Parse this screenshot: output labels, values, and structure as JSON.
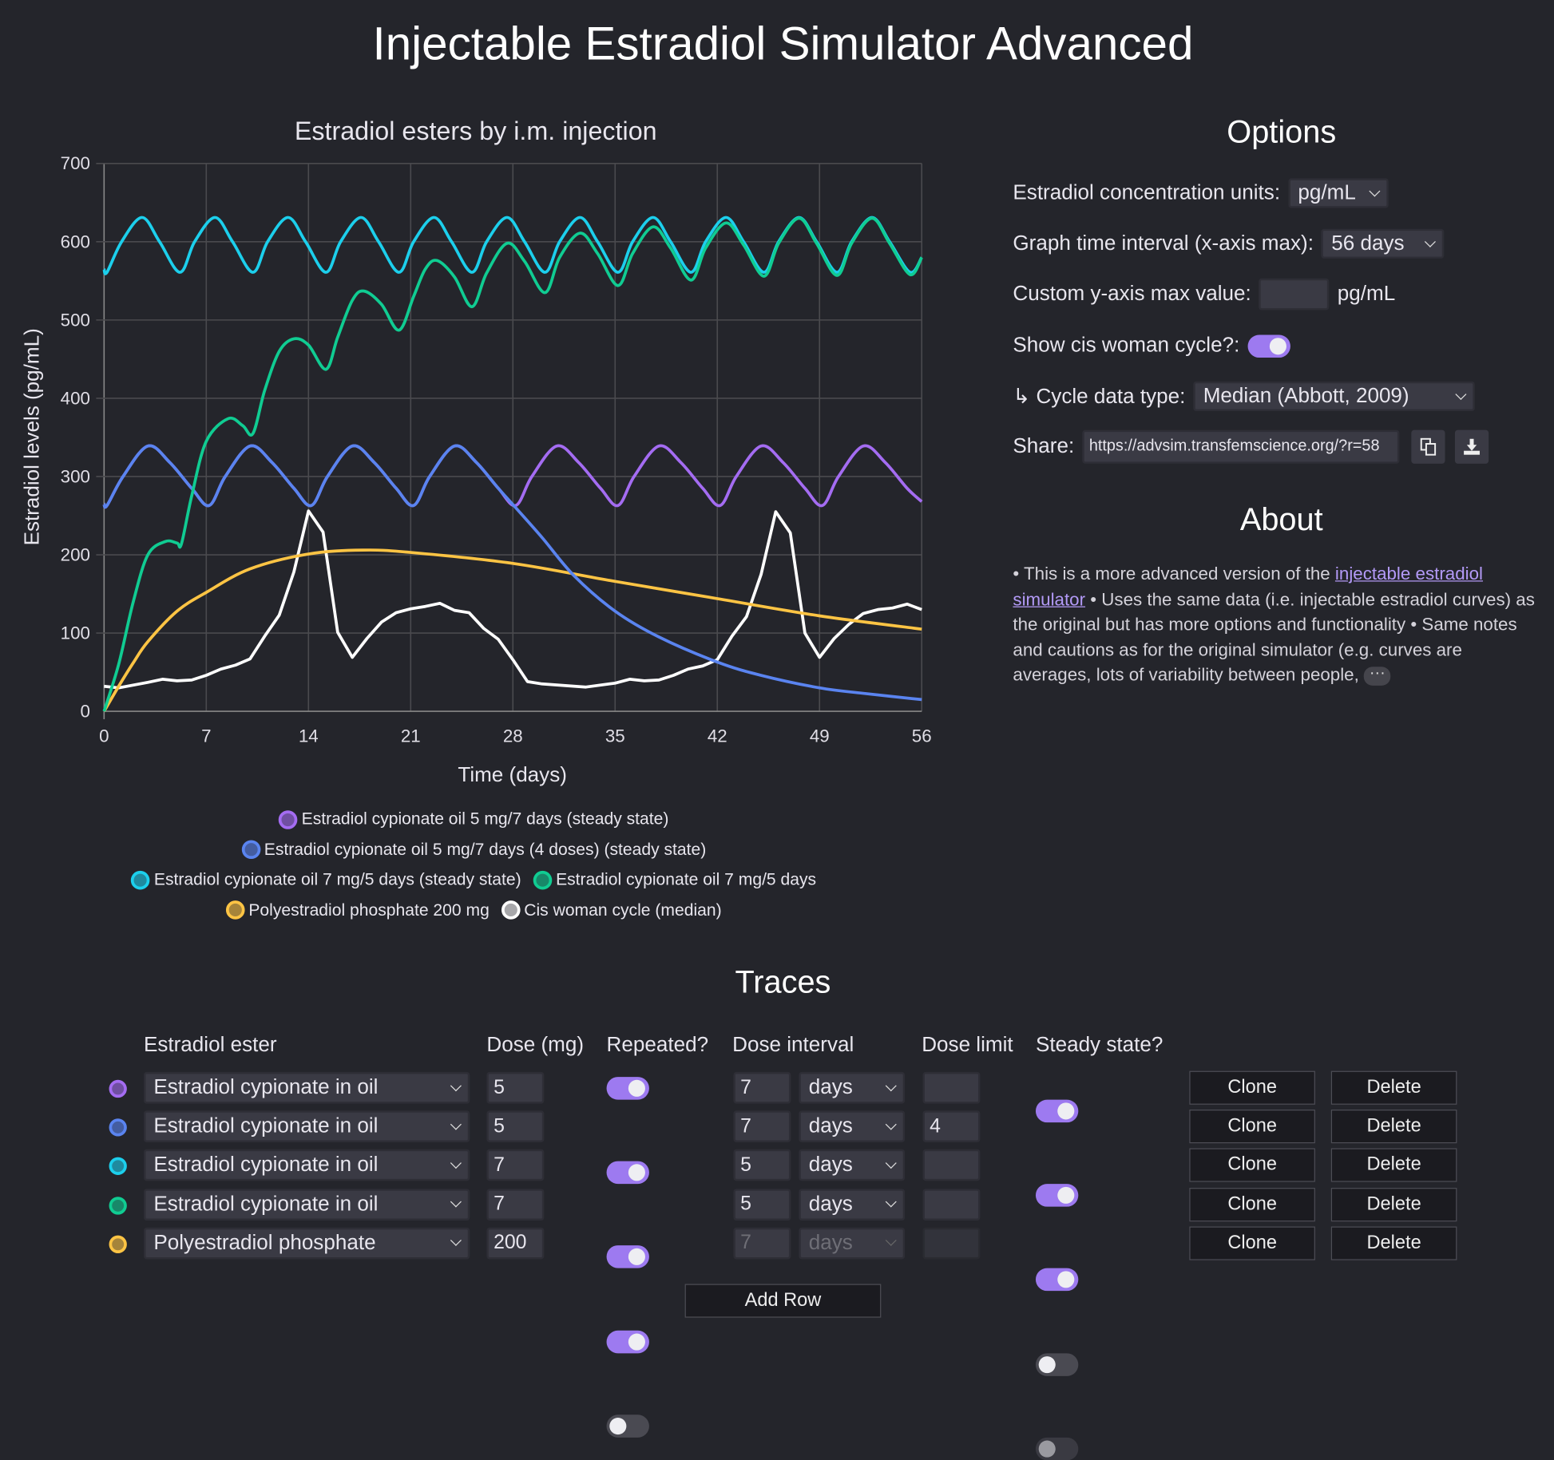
{
  "title": "Injectable Estradiol Simulator Advanced",
  "colors": {
    "purple": "#a46cf2",
    "blue": "#5a84f0",
    "cyan": "#1ccfec",
    "green": "#10cc92",
    "yellow": "#fdc444",
    "white": "#ffffff",
    "accent": "#9d7af0",
    "background": "#24252b"
  },
  "chart_data": {
    "type": "line",
    "title": "Estradiol esters by i.m. injection",
    "xlabel": "Time (days)",
    "ylabel": "Estradiol levels (pg/mL)",
    "xlim": [
      0,
      56
    ],
    "ylim": [
      0,
      700
    ],
    "xticks": [
      "0",
      "7",
      "14",
      "21",
      "28",
      "35",
      "42",
      "49",
      "56"
    ],
    "yticks": [
      "0",
      "100",
      "200",
      "300",
      "400",
      "500",
      "600",
      "700"
    ],
    "grid": true,
    "legend_position": "bottom",
    "series": [
      {
        "name": "Estradiol cypionate oil 5 mg/7 days (steady state)",
        "color": "#a46cf2",
        "smooth": true,
        "points": [
          [
            0,
            265
          ],
          [
            0.2,
            263
          ],
          [
            1.3,
            300
          ],
          [
            3,
            339
          ],
          [
            4.5,
            318
          ],
          [
            6,
            285
          ],
          [
            7.2,
            263
          ],
          [
            8.3,
            300
          ],
          [
            10,
            339
          ],
          [
            11.5,
            318
          ],
          [
            13,
            285
          ],
          [
            14.2,
            263
          ],
          [
            15.3,
            300
          ],
          [
            17,
            339
          ],
          [
            18.5,
            318
          ],
          [
            20,
            285
          ],
          [
            21.2,
            263
          ],
          [
            22.3,
            300
          ],
          [
            24,
            339
          ],
          [
            25.5,
            318
          ],
          [
            27,
            285
          ],
          [
            28.2,
            263
          ],
          [
            29.3,
            300
          ],
          [
            31,
            339
          ],
          [
            32.5,
            318
          ],
          [
            34,
            285
          ],
          [
            35.2,
            263
          ],
          [
            36.3,
            300
          ],
          [
            38,
            339
          ],
          [
            39.5,
            318
          ],
          [
            41,
            285
          ],
          [
            42.2,
            263
          ],
          [
            43.3,
            300
          ],
          [
            45,
            339
          ],
          [
            46.5,
            318
          ],
          [
            48,
            285
          ],
          [
            49.2,
            263
          ],
          [
            50.3,
            300
          ],
          [
            52,
            339
          ],
          [
            53.5,
            318
          ],
          [
            55,
            285
          ],
          [
            56,
            268
          ]
        ]
      },
      {
        "name": "Estradiol cypionate oil 5 mg/7 days (4 doses) (steady state)",
        "color": "#5a84f0",
        "smooth": true,
        "points": [
          [
            0,
            265
          ],
          [
            0.2,
            263
          ],
          [
            1.3,
            300
          ],
          [
            3,
            339
          ],
          [
            4.5,
            318
          ],
          [
            6,
            285
          ],
          [
            7.2,
            263
          ],
          [
            8.3,
            300
          ],
          [
            10,
            339
          ],
          [
            11.5,
            318
          ],
          [
            13,
            285
          ],
          [
            14.2,
            263
          ],
          [
            15.3,
            300
          ],
          [
            17,
            339
          ],
          [
            18.5,
            318
          ],
          [
            20,
            285
          ],
          [
            21.2,
            263
          ],
          [
            22.3,
            300
          ],
          [
            24,
            339
          ],
          [
            25.5,
            318
          ],
          [
            27,
            285
          ],
          [
            28.2,
            260
          ],
          [
            30,
            222
          ],
          [
            32.2,
            173
          ],
          [
            35,
            128
          ],
          [
            38,
            95
          ],
          [
            42,
            63
          ],
          [
            45,
            46
          ],
          [
            49,
            30
          ],
          [
            52,
            23
          ],
          [
            56,
            15
          ]
        ]
      },
      {
        "name": "Estradiol cypionate oil 7 mg/5 days (steady state)",
        "color": "#1ccfec",
        "smooth": true,
        "points": [
          [
            0,
            565
          ],
          [
            0.2,
            561
          ],
          [
            1.2,
            600
          ],
          [
            2.6,
            631
          ],
          [
            3.8,
            600
          ],
          [
            5.2,
            561
          ],
          [
            6.2,
            600
          ],
          [
            7.6,
            631
          ],
          [
            8.8,
            600
          ],
          [
            10.2,
            561
          ],
          [
            11.2,
            600
          ],
          [
            12.6,
            631
          ],
          [
            13.8,
            600
          ],
          [
            15.2,
            561
          ],
          [
            16.2,
            600
          ],
          [
            17.6,
            631
          ],
          [
            18.8,
            600
          ],
          [
            20.2,
            561
          ],
          [
            21.2,
            600
          ],
          [
            22.6,
            631
          ],
          [
            23.8,
            600
          ],
          [
            25.2,
            561
          ],
          [
            26.2,
            600
          ],
          [
            27.6,
            631
          ],
          [
            28.8,
            600
          ],
          [
            30.2,
            561
          ],
          [
            31.2,
            600
          ],
          [
            32.6,
            631
          ],
          [
            33.8,
            600
          ],
          [
            35.2,
            561
          ],
          [
            36.2,
            600
          ],
          [
            37.6,
            631
          ],
          [
            38.8,
            600
          ],
          [
            40.2,
            561
          ],
          [
            41.2,
            600
          ],
          [
            42.6,
            631
          ],
          [
            43.8,
            600
          ],
          [
            45.2,
            561
          ],
          [
            46.2,
            600
          ],
          [
            47.6,
            631
          ],
          [
            48.8,
            600
          ],
          [
            50.2,
            561
          ],
          [
            51.2,
            600
          ],
          [
            52.6,
            631
          ],
          [
            53.8,
            600
          ],
          [
            55.2,
            561
          ],
          [
            56,
            580
          ]
        ]
      },
      {
        "name": "Estradiol cypionate oil 7 mg/5 days",
        "color": "#10cc92",
        "smooth": true,
        "points": [
          [
            0,
            0
          ],
          [
            1,
            60
          ],
          [
            2,
            140
          ],
          [
            3,
            200
          ],
          [
            4.2,
            217
          ],
          [
            5,
            215
          ],
          [
            5.3,
            214
          ],
          [
            6,
            275
          ],
          [
            7,
            345
          ],
          [
            8.5,
            374
          ],
          [
            9.5,
            365
          ],
          [
            10.2,
            355
          ],
          [
            11,
            410
          ],
          [
            12,
            460
          ],
          [
            13,
            476
          ],
          [
            14,
            468
          ],
          [
            15.2,
            437
          ],
          [
            16,
            478
          ],
          [
            17,
            525
          ],
          [
            17.8,
            537
          ],
          [
            19,
            520
          ],
          [
            20.2,
            487
          ],
          [
            21.2,
            530
          ],
          [
            22,
            565
          ],
          [
            22.8,
            576
          ],
          [
            24,
            555
          ],
          [
            25.2,
            517
          ],
          [
            26.2,
            560
          ],
          [
            27.6,
            598
          ],
          [
            28.8,
            575
          ],
          [
            30.2,
            535
          ],
          [
            31.2,
            580
          ],
          [
            32.6,
            611
          ],
          [
            33.8,
            585
          ],
          [
            35.2,
            544
          ],
          [
            36.2,
            585
          ],
          [
            37.6,
            619
          ],
          [
            38.8,
            592
          ],
          [
            40.2,
            551
          ],
          [
            41.2,
            592
          ],
          [
            42.6,
            624
          ],
          [
            43.8,
            596
          ],
          [
            45.2,
            556
          ],
          [
            46.2,
            598
          ],
          [
            47.6,
            630
          ],
          [
            48.8,
            598
          ],
          [
            50.2,
            557
          ],
          [
            51.2,
            598
          ],
          [
            52.6,
            630
          ],
          [
            53.8,
            598
          ],
          [
            55.2,
            558
          ],
          [
            56,
            580
          ]
        ]
      },
      {
        "name": "Polyestradiol phosphate 200 mg",
        "color": "#fdc444",
        "smooth": true,
        "points": [
          [
            0,
            0
          ],
          [
            1,
            32
          ],
          [
            2,
            62
          ],
          [
            3,
            89
          ],
          [
            5,
            128
          ],
          [
            7,
            152
          ],
          [
            10,
            182
          ],
          [
            14,
            201
          ],
          [
            17.7,
            206
          ],
          [
            21,
            203
          ],
          [
            28,
            189
          ],
          [
            35,
            166
          ],
          [
            42,
            144
          ],
          [
            49,
            122
          ],
          [
            56,
            105
          ]
        ]
      },
      {
        "name": "Cis woman cycle (median)",
        "color": "#ffffff",
        "smooth": false,
        "points": [
          [
            0,
            32
          ],
          [
            1,
            30
          ],
          [
            3,
            37
          ],
          [
            4,
            41
          ],
          [
            5,
            39
          ],
          [
            6,
            40
          ],
          [
            7,
            46
          ],
          [
            8,
            54
          ],
          [
            9,
            59
          ],
          [
            10,
            67
          ],
          [
            11,
            96
          ],
          [
            12,
            123
          ],
          [
            13,
            178
          ],
          [
            14,
            256
          ],
          [
            15,
            229
          ],
          [
            16,
            101
          ],
          [
            17,
            69
          ],
          [
            18,
            93
          ],
          [
            19,
            114
          ],
          [
            20,
            126
          ],
          [
            21,
            131
          ],
          [
            22,
            134
          ],
          [
            23,
            138
          ],
          [
            24,
            129
          ],
          [
            25,
            126
          ],
          [
            26,
            106
          ],
          [
            27,
            92
          ],
          [
            28,
            66
          ],
          [
            29,
            38
          ],
          [
            30,
            35
          ],
          [
            33,
            31
          ],
          [
            35,
            36
          ],
          [
            36,
            41
          ],
          [
            37,
            39
          ],
          [
            38,
            40
          ],
          [
            39,
            46
          ],
          [
            40,
            54
          ],
          [
            41,
            58
          ],
          [
            42,
            66
          ],
          [
            43,
            96
          ],
          [
            44,
            121
          ],
          [
            45,
            175
          ],
          [
            46,
            255
          ],
          [
            47,
            228
          ],
          [
            48,
            100
          ],
          [
            49,
            69
          ],
          [
            50,
            93
          ],
          [
            51,
            111
          ],
          [
            52,
            125
          ],
          [
            53,
            130
          ],
          [
            54,
            132
          ],
          [
            55,
            137
          ],
          [
            56,
            130
          ]
        ]
      }
    ]
  },
  "options": {
    "heading": "Options",
    "units_label": "Estradiol concentration units:",
    "units_value": "pg/mL",
    "interval_label": "Graph time interval (x-axis max):",
    "interval_value": "56 days",
    "ymax_label": "Custom y-axis max value:",
    "ymax_value": "",
    "ymax_unit": "pg/mL",
    "cycle_label": "Show cis woman cycle?:",
    "cycle_on": true,
    "cycle_type_label": "↳ Cycle data type:",
    "cycle_type_value": "Median (Abbott, 2009)",
    "share_label": "Share:",
    "share_url": "https://advsim.transfemscience.org/?r=58"
  },
  "about": {
    "heading": "About",
    "text_1": "• This is a more advanced version of the ",
    "link": "injectable estradiol simulator",
    "text_2": " • Uses the same data (i.e. injectable estradiol curves) as the original but has more options and functionality • Same notes and cautions as for the original simulator (e.g. curves are averages, lots of variability between people, ",
    "more": "···"
  },
  "traces": {
    "heading": "Traces",
    "columns": {
      "ester": "Estradiol ester",
      "dose": "Dose (mg)",
      "repeated": "Repeated?",
      "interval": "Dose interval",
      "limit": "Dose limit",
      "steady": "Steady state?"
    },
    "clone_label": "Clone",
    "delete_label": "Delete",
    "add_row_label": "Add Row",
    "rows": [
      {
        "color": "#a46cf2",
        "ester": "Estradiol cypionate in oil",
        "dose": "5",
        "repeated": true,
        "interval": "7",
        "unit": "days",
        "limit": "",
        "steady": true
      },
      {
        "color": "#5a84f0",
        "ester": "Estradiol cypionate in oil",
        "dose": "5",
        "repeated": true,
        "interval": "7",
        "unit": "days",
        "limit": "4",
        "steady": true
      },
      {
        "color": "#1ccfec",
        "ester": "Estradiol cypionate in oil",
        "dose": "7",
        "repeated": true,
        "interval": "5",
        "unit": "days",
        "limit": "",
        "steady": true
      },
      {
        "color": "#10cc92",
        "ester": "Estradiol cypionate in oil",
        "dose": "7",
        "repeated": true,
        "interval": "5",
        "unit": "days",
        "limit": "",
        "steady": false
      },
      {
        "color": "#fdc444",
        "ester": "Polyestradiol phosphate",
        "dose": "200",
        "repeated": false,
        "interval": "7",
        "unit": "days",
        "limit": "",
        "steady": false
      }
    ]
  }
}
